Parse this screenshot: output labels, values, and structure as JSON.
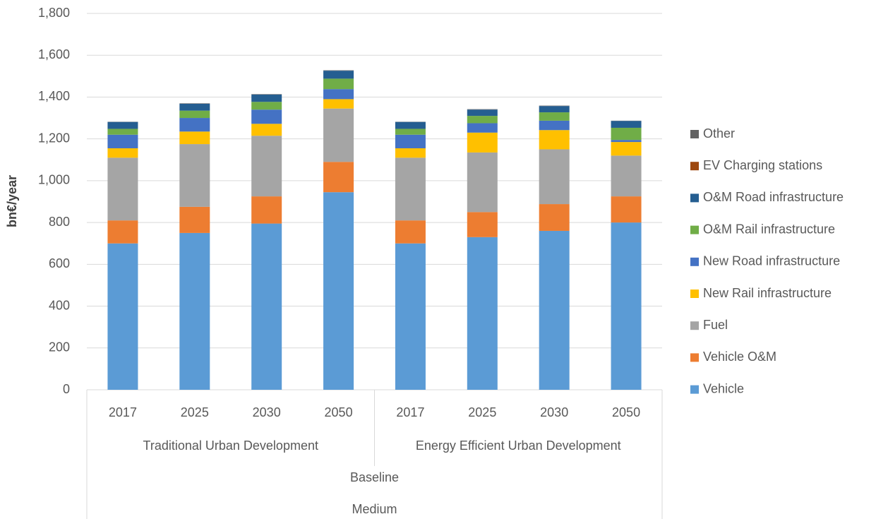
{
  "chart_data": {
    "type": "stacked_bar",
    "y_label": "bn€/year",
    "categories": [
      "2017",
      "2025",
      "2030",
      "2050",
      "2017",
      "2025",
      "2030",
      "2050"
    ],
    "category_groups": [
      [
        "Traditional Urban Development",
        null,
        null,
        null,
        "Energy Efficient Urban Development",
        null,
        null,
        null
      ],
      [
        "Baseline",
        null,
        null,
        null,
        null,
        null,
        null,
        null
      ],
      [
        "Medium",
        null,
        null,
        null,
        null,
        null,
        null,
        null
      ]
    ],
    "series": [
      {
        "name": "Vehicle",
        "color": "#5b9bd5",
        "values": [
          700,
          750,
          795,
          945,
          700,
          730,
          760,
          800
        ]
      },
      {
        "name": "Vehicle O&M",
        "color": "#ed7d31",
        "values": [
          110,
          125,
          130,
          145,
          110,
          120,
          128,
          125
        ]
      },
      {
        "name": "Fuel",
        "color": "#a5a5a5",
        "values": [
          300,
          300,
          290,
          255,
          300,
          285,
          262,
          195
        ]
      },
      {
        "name": "New Rail infrastructure",
        "color": "#ffc000",
        "values": [
          45,
          60,
          57,
          45,
          45,
          95,
          92,
          65
        ]
      },
      {
        "name": "New Road infrastructure",
        "color": "#4472c4",
        "values": [
          65,
          65,
          68,
          48,
          65,
          45,
          45,
          10
        ]
      },
      {
        "name": "O&M Rail infrastructure",
        "color": "#70ad47",
        "values": [
          28,
          35,
          37,
          50,
          28,
          35,
          40,
          58
        ]
      },
      {
        "name": "O&M Road infrastructure",
        "color": "#255e91",
        "values": [
          33,
          33,
          35,
          38,
          33,
          30,
          30,
          33
        ]
      },
      {
        "name": "EV Charging stations",
        "color": "#9e480e",
        "values": [
          0,
          0,
          0,
          0,
          0,
          0,
          0,
          0
        ]
      },
      {
        "name": "Other",
        "color": "#636363",
        "values": [
          1,
          2,
          2,
          2,
          1,
          2,
          2,
          1
        ]
      }
    ],
    "ylim": [
      0,
      1800
    ],
    "yticks": [
      0,
      200,
      400,
      600,
      800,
      {
        "value": 1000,
        "label": "1,000"
      },
      {
        "value": 1200,
        "label": "1,200"
      },
      {
        "value": 1400,
        "label": "1,400"
      },
      {
        "value": 1600,
        "label": "1,600"
      },
      {
        "value": 1800,
        "label": "1,800"
      }
    ],
    "grid": true,
    "legend": "right"
  }
}
